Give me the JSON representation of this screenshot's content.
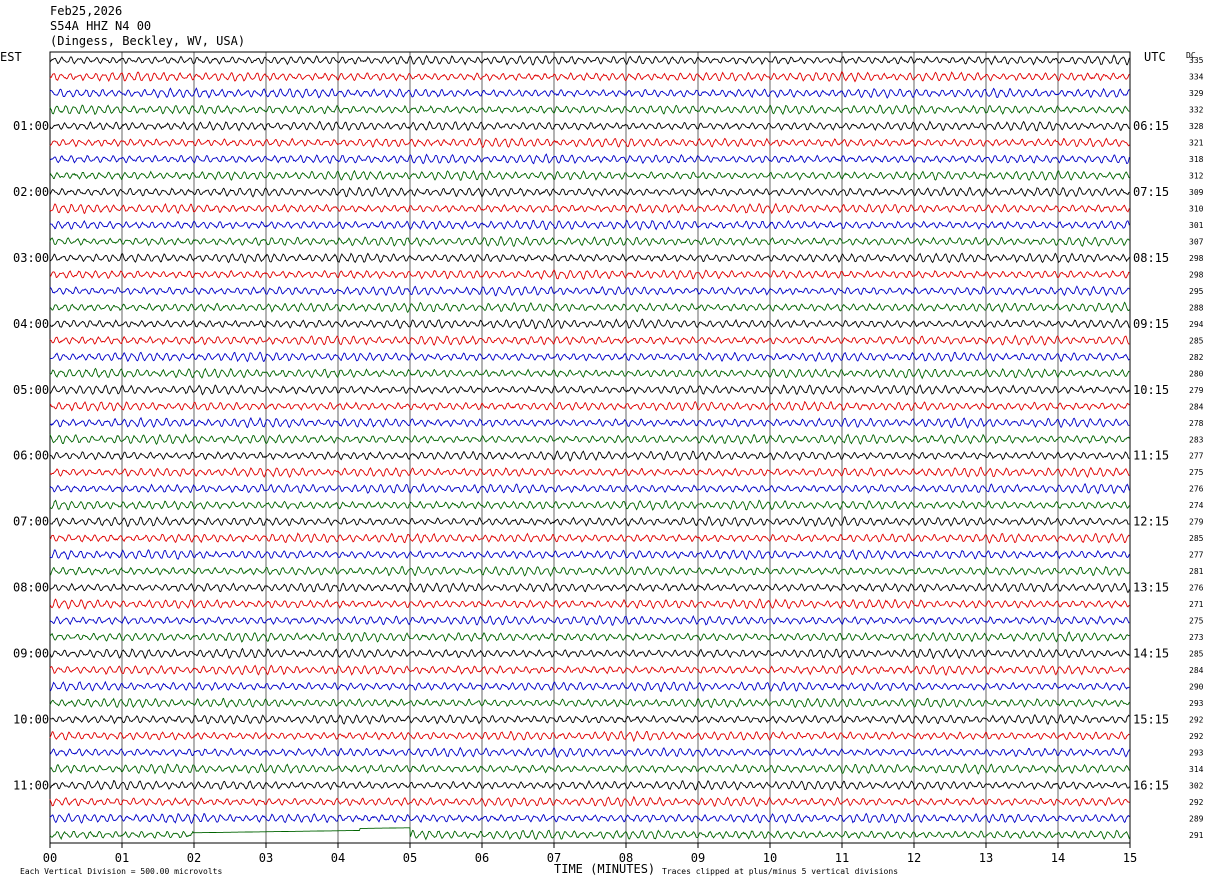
{
  "header": {
    "date": "Feb25,2026",
    "station": "S54A HHZ N4 00",
    "location": "(Dingess, Beckley, WV, USA)"
  },
  "chart_data": {
    "type": "line",
    "title": "Feb25,2026",
    "left_axis_label": "EST",
    "right_axis_label": "UTC",
    "dc_label": "DC",
    "xlabel": "TIME (MINUTES)",
    "xlim": [
      0,
      15
    ],
    "x_ticks": [
      "00",
      "01",
      "02",
      "03",
      "04",
      "05",
      "06",
      "07",
      "08",
      "09",
      "10",
      "11",
      "12",
      "13",
      "14",
      "15"
    ],
    "row_minutes": 15,
    "trace_colors": [
      "#000000",
      "#e00000",
      "#0000c8",
      "#006400"
    ],
    "left_hour_labels": [
      "01:00",
      "02:00",
      "03:00",
      "04:00",
      "05:00",
      "06:00",
      "07:00",
      "08:00",
      "09:00",
      "10:00",
      "11:00"
    ],
    "right_hour_labels": [
      "06:15",
      "07:15",
      "08:15",
      "09:15",
      "10:15",
      "11:15",
      "12:15",
      "13:15",
      "14:15",
      "15:15",
      "16:15"
    ],
    "dc_offsets": [
      335,
      334,
      329,
      332,
      328,
      321,
      318,
      312,
      309,
      310,
      301,
      307,
      298,
      298,
      295,
      288,
      294,
      285,
      282,
      280,
      279,
      284,
      278,
      283,
      277,
      275,
      276,
      274,
      279,
      285,
      277,
      281,
      276,
      271,
      275,
      273,
      285,
      284,
      290,
      293,
      292,
      292,
      293,
      314,
      302,
      292,
      289,
      291
    ],
    "vertical_division": "Each Vertical Division =  500.00 microvolts",
    "clip_note": "Traces clipped at plus/minus 5 vertical divisions"
  }
}
